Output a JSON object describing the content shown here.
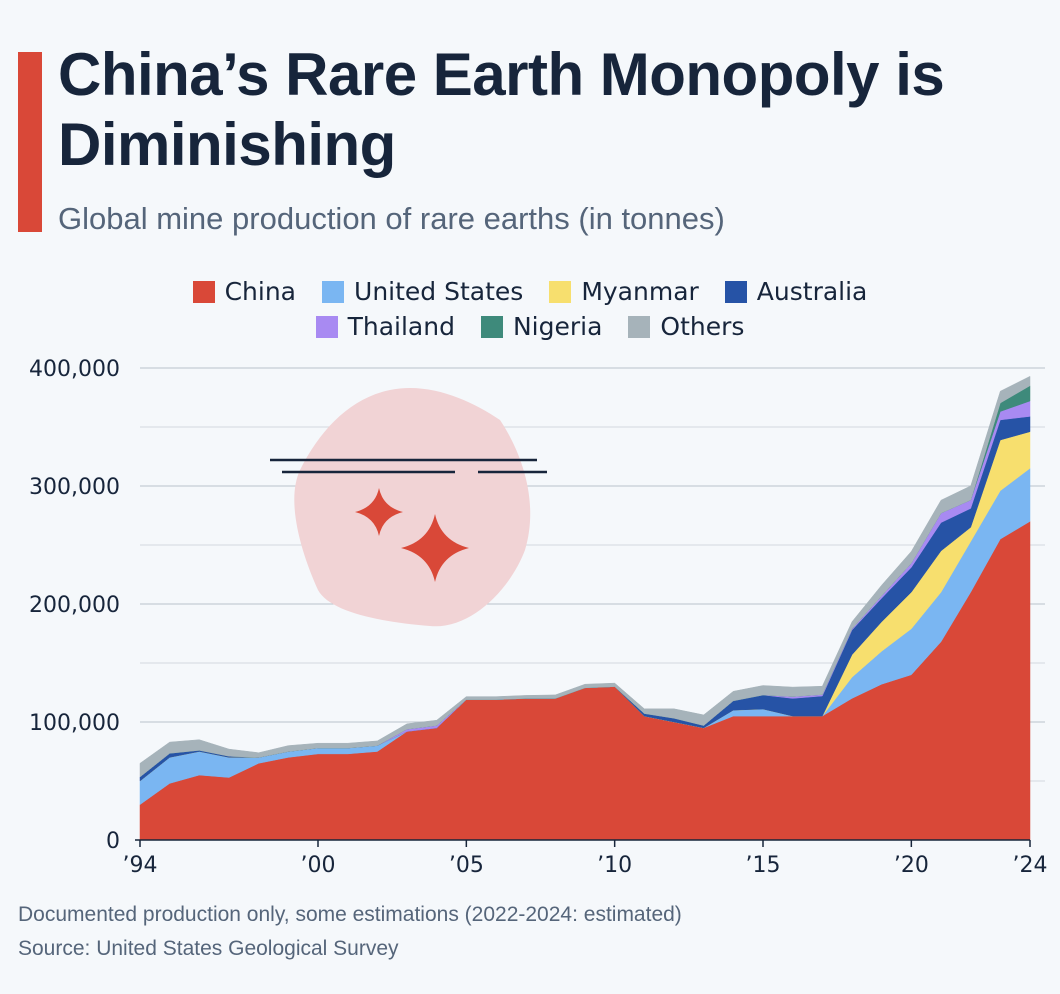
{
  "header": {
    "title": "China’s Rare Earth Monopoly is Diminishing",
    "subtitle": "Global mine production of rare earths (in tonnes)"
  },
  "footer": {
    "note": "Documented production only, some estimations (2022-2024: estimated)",
    "source": "Source: United States Geological Survey"
  },
  "chart_data": {
    "type": "area",
    "stacked": true,
    "title": "China’s Rare Earth Monopoly is Diminishing",
    "subtitle": "Global mine production of rare earths (in tonnes)",
    "x": [
      1994,
      1995,
      1996,
      1997,
      1998,
      1999,
      2000,
      2001,
      2002,
      2003,
      2004,
      2005,
      2006,
      2007,
      2008,
      2009,
      2010,
      2011,
      2012,
      2013,
      2014,
      2015,
      2016,
      2017,
      2018,
      2019,
      2020,
      2021,
      2022,
      2023,
      2024
    ],
    "x_ticks": [
      1994,
      2000,
      2005,
      2010,
      2015,
      2020,
      2024
    ],
    "x_tick_labels": [
      "’94",
      "’00",
      "’05",
      "’10",
      "’15",
      "’20",
      "’24"
    ],
    "y_ticks": [
      0,
      100000,
      200000,
      300000,
      400000
    ],
    "y_tick_labels": [
      "0",
      "100,000",
      "200,000",
      "300,000",
      "400,000"
    ],
    "ylim": [
      0,
      400000
    ],
    "xlabel": "",
    "ylabel": "",
    "series": [
      {
        "name": "China",
        "color": "#d94838",
        "values": [
          30000,
          48000,
          55000,
          53000,
          65000,
          70000,
          73000,
          73000,
          75000,
          92000,
          95000,
          119000,
          119000,
          120000,
          120000,
          129000,
          130000,
          105000,
          100000,
          95000,
          105000,
          105000,
          105000,
          105000,
          120000,
          132000,
          140000,
          168000,
          210000,
          255000,
          270000
        ]
      },
      {
        "name": "United States",
        "color": "#7ab6f2",
        "values": [
          20000,
          22000,
          20000,
          17000,
          5000,
          5000,
          5000,
          5000,
          5000,
          0,
          0,
          0,
          0,
          0,
          0,
          0,
          0,
          0,
          0,
          0,
          5000,
          5900,
          0,
          0,
          18000,
          28000,
          39000,
          42000,
          43000,
          41000,
          45000
        ]
      },
      {
        "name": "Myanmar",
        "color": "#f7df6e",
        "values": [
          0,
          0,
          0,
          0,
          0,
          0,
          0,
          0,
          0,
          0,
          0,
          0,
          0,
          0,
          0,
          0,
          0,
          0,
          0,
          0,
          0,
          0,
          0,
          0,
          19000,
          25000,
          31000,
          35000,
          12000,
          43000,
          31000
        ]
      },
      {
        "name": "Australia",
        "color": "#2653a6",
        "values": [
          3500,
          3500,
          1000,
          1000,
          0,
          0,
          0,
          0,
          0,
          0,
          0,
          0,
          0,
          0,
          0,
          0,
          0,
          2200,
          3200,
          2000,
          8000,
          12000,
          15000,
          17000,
          21000,
          20000,
          21000,
          24000,
          16000,
          17000,
          13000
        ]
      },
      {
        "name": "Thailand",
        "color": "#a88af2",
        "values": [
          0,
          0,
          0,
          0,
          0,
          0,
          0,
          0,
          0,
          2000,
          2000,
          0,
          0,
          0,
          0,
          0,
          0,
          0,
          0,
          0,
          0,
          0,
          1600,
          1300,
          1000,
          2000,
          3600,
          8000,
          7100,
          7100,
          13000
        ]
      },
      {
        "name": "Nigeria",
        "color": "#3e8a7b",
        "values": [
          0,
          0,
          0,
          0,
          0,
          0,
          0,
          0,
          0,
          0,
          0,
          0,
          0,
          0,
          0,
          0,
          0,
          0,
          0,
          0,
          0,
          0,
          0,
          0,
          0,
          0,
          0,
          0,
          0,
          7200,
          13000
        ]
      },
      {
        "name": "Others",
        "color": "#a6b3ba",
        "values": [
          11500,
          9500,
          9000,
          6000,
          4000,
          5000,
          4000,
          4000,
          4000,
          4500,
          4500,
          2500,
          2500,
          2500,
          3000,
          3000,
          3000,
          4000,
          8000,
          9000,
          8000,
          8000,
          8000,
          7000,
          6000,
          9000,
          10000,
          11000,
          12000,
          10000,
          8000
        ]
      }
    ],
    "legend_position": "top-center",
    "grid": true
  }
}
